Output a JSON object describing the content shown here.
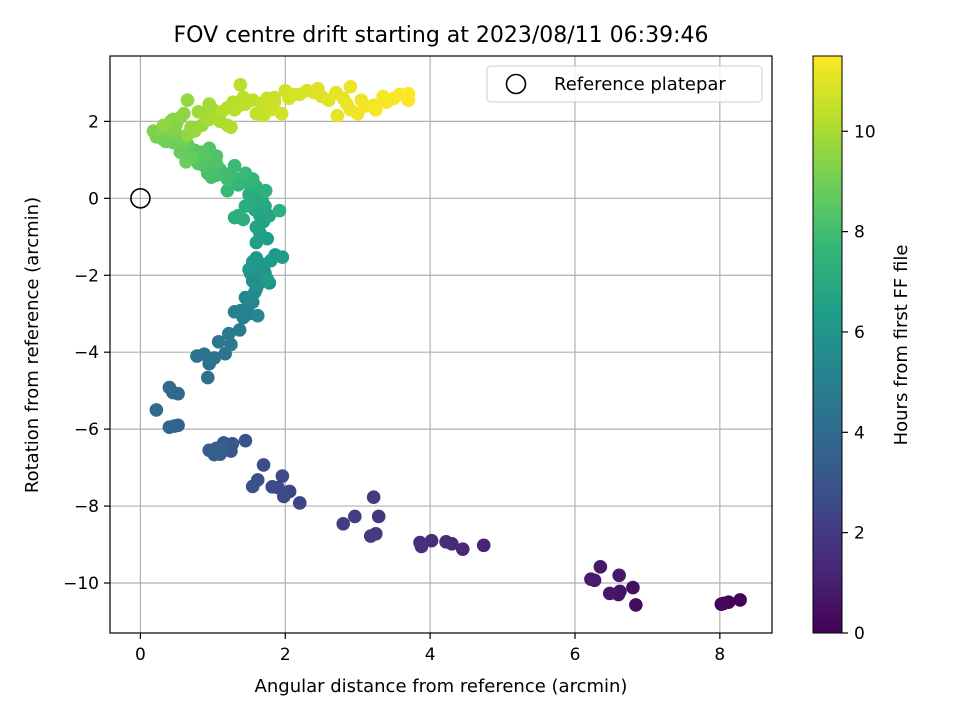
{
  "chart_data": {
    "type": "scatter",
    "title": "FOV centre drift starting at 2023/08/11 06:39:46",
    "xlabel": "Angular distance from reference (arcmin)",
    "ylabel": "Rotation from reference (arcmin)",
    "xlim": [
      -0.42,
      8.72
    ],
    "ylim": [
      -11.3,
      3.7
    ],
    "xticks": [
      0,
      2,
      4,
      6,
      8
    ],
    "xtick_labels": [
      "0",
      "2",
      "4",
      "6",
      "8"
    ],
    "yticks": [
      2,
      0,
      -2,
      -4,
      -6,
      -8,
      -10
    ],
    "ytick_labels": [
      "2",
      "0",
      "−2",
      "−4",
      "−6",
      "−8",
      "−10"
    ],
    "grid": true,
    "legend": {
      "position": "top-right",
      "entries": [
        {
          "label": "Reference platepar",
          "marker": "open-circle"
        }
      ]
    },
    "reference_point": {
      "x": 0,
      "y": 0
    },
    "colorbar": {
      "label": "Hours from first FF file",
      "range": [
        0,
        11.5
      ],
      "ticks": [
        0,
        2,
        4,
        6,
        8,
        10
      ],
      "tick_labels": [
        "0",
        "2",
        "4",
        "6",
        "8",
        "10"
      ],
      "colormap": "viridis"
    },
    "colors": {
      "viridis": [
        "#440154",
        "#482878",
        "#3e4a89",
        "#31688e",
        "#26828e",
        "#1f9e89",
        "#35b779",
        "#6ece58",
        "#b5de2b",
        "#fde725"
      ],
      "grid": "#b0b0b0"
    },
    "points": [
      [
        8.28,
        -10.44,
        0.05
      ],
      [
        8.12,
        -10.5,
        0.1
      ],
      [
        8.02,
        -10.55,
        0.15
      ],
      [
        8.05,
        -10.53,
        0.2
      ],
      [
        6.84,
        -10.57,
        0.4
      ],
      [
        6.8,
        -10.12,
        0.5
      ],
      [
        6.62,
        -10.22,
        0.6
      ],
      [
        6.6,
        -10.3,
        0.65
      ],
      [
        6.48,
        -10.27,
        0.7
      ],
      [
        6.61,
        -9.8,
        0.75
      ],
      [
        6.35,
        -9.58,
        0.8
      ],
      [
        6.27,
        -9.93,
        0.85
      ],
      [
        6.22,
        -9.9,
        0.9
      ],
      [
        4.74,
        -9.02,
        1.2
      ],
      [
        4.45,
        -9.12,
        1.3
      ],
      [
        4.3,
        -8.98,
        1.4
      ],
      [
        4.22,
        -8.93,
        1.45
      ],
      [
        4.02,
        -8.9,
        1.5
      ],
      [
        3.86,
        -8.95,
        1.55
      ],
      [
        3.88,
        -9.05,
        1.6
      ],
      [
        3.29,
        -8.27,
        1.8
      ],
      [
        3.25,
        -8.72,
        1.9
      ],
      [
        3.18,
        -8.78,
        1.95
      ],
      [
        3.22,
        -7.77,
        2.0
      ],
      [
        2.96,
        -8.27,
        2.1
      ],
      [
        2.8,
        -8.46,
        2.15
      ],
      [
        2.2,
        -7.92,
        2.3
      ],
      [
        2.06,
        -7.62,
        2.4
      ],
      [
        1.98,
        -7.75,
        2.5
      ],
      [
        1.96,
        -7.22,
        2.55
      ],
      [
        1.9,
        -7.52,
        2.6
      ],
      [
        1.82,
        -7.5,
        2.65
      ],
      [
        1.7,
        -6.93,
        2.7
      ],
      [
        1.62,
        -7.32,
        2.8
      ],
      [
        1.55,
        -7.49,
        2.85
      ],
      [
        1.45,
        -6.3,
        3.0
      ],
      [
        1.27,
        -6.38,
        3.1
      ],
      [
        1.25,
        -6.57,
        3.15
      ],
      [
        1.15,
        -6.36,
        3.2
      ],
      [
        1.1,
        -6.65,
        3.25
      ],
      [
        1.05,
        -6.5,
        3.3
      ],
      [
        0.95,
        -6.55,
        3.35
      ],
      [
        1.02,
        -6.66,
        3.4
      ],
      [
        1.12,
        -6.5,
        3.45
      ],
      [
        0.52,
        -5.9,
        3.6
      ],
      [
        0.47,
        -5.92,
        3.65
      ],
      [
        0.4,
        -5.95,
        3.7
      ],
      [
        0.52,
        -5.08,
        3.8
      ],
      [
        0.45,
        -5.05,
        3.85
      ],
      [
        0.4,
        -4.92,
        3.9
      ],
      [
        0.22,
        -5.5,
        4.0
      ],
      [
        0.93,
        -4.66,
        4.2
      ],
      [
        0.95,
        -4.3,
        4.3
      ],
      [
        0.88,
        -4.05,
        4.35
      ],
      [
        0.78,
        -4.1,
        4.4
      ],
      [
        1.02,
        -4.15,
        4.45
      ],
      [
        1.17,
        -4.04,
        4.5
      ],
      [
        1.08,
        -3.73,
        4.6
      ],
      [
        1.25,
        -3.8,
        4.65
      ],
      [
        1.22,
        -3.52,
        4.7
      ],
      [
        1.37,
        -3.42,
        4.8
      ],
      [
        1.42,
        -3.1,
        4.9
      ],
      [
        1.38,
        -2.92,
        4.95
      ],
      [
        1.3,
        -2.95,
        5.0
      ],
      [
        1.47,
        -2.85,
        5.05
      ],
      [
        1.5,
        -3.0,
        5.1
      ],
      [
        1.55,
        -2.7,
        5.2
      ],
      [
        1.45,
        -2.58,
        5.25
      ],
      [
        1.52,
        -2.62,
        5.3
      ],
      [
        1.62,
        -3.05,
        5.35
      ],
      [
        1.58,
        -2.44,
        5.4
      ],
      [
        1.6,
        -2.35,
        5.5
      ],
      [
        1.55,
        -2.15,
        5.6
      ],
      [
        1.52,
        -1.95,
        5.65
      ],
      [
        1.64,
        -2.0,
        5.7
      ],
      [
        1.7,
        -1.82,
        5.75
      ],
      [
        1.62,
        -2.25,
        5.8
      ],
      [
        1.72,
        -1.95,
        5.9
      ],
      [
        1.78,
        -2.2,
        5.95
      ],
      [
        1.66,
        -1.7,
        6.0
      ],
      [
        1.6,
        -1.55,
        6.05
      ],
      [
        1.55,
        -1.65,
        6.1
      ],
      [
        1.5,
        -1.85,
        6.15
      ],
      [
        1.86,
        -1.47,
        6.2
      ],
      [
        1.96,
        -1.53,
        6.25
      ],
      [
        1.8,
        -1.62,
        6.3
      ],
      [
        1.75,
        -2.1,
        6.35
      ],
      [
        1.6,
        -1.15,
        6.4
      ],
      [
        1.75,
        -1.05,
        6.45
      ],
      [
        1.65,
        -0.9,
        6.5
      ],
      [
        1.6,
        -0.75,
        6.6
      ],
      [
        1.7,
        -0.6,
        6.65
      ],
      [
        1.65,
        -0.45,
        6.7
      ],
      [
        1.78,
        -0.45,
        6.75
      ],
      [
        1.58,
        -0.3,
        6.8
      ],
      [
        1.72,
        -0.2,
        6.85
      ],
      [
        1.55,
        -0.1,
        6.9
      ],
      [
        1.68,
        -0.05,
        6.95
      ],
      [
        1.62,
        0.05,
        7.0
      ],
      [
        1.5,
        0.1,
        7.05
      ],
      [
        1.45,
        -0.2,
        7.1
      ],
      [
        1.35,
        -0.45,
        7.15
      ],
      [
        1.3,
        -0.5,
        7.2
      ],
      [
        1.42,
        -0.55,
        7.25
      ],
      [
        1.92,
        -0.32,
        7.3
      ],
      [
        1.73,
        0.2,
        7.35
      ],
      [
        1.6,
        0.3,
        7.4
      ],
      [
        1.48,
        0.4,
        7.45
      ],
      [
        1.55,
        0.5,
        7.5
      ],
      [
        1.42,
        0.55,
        7.55
      ],
      [
        1.35,
        0.35,
        7.6
      ],
      [
        1.28,
        0.55,
        7.65
      ],
      [
        1.2,
        0.2,
        7.7
      ],
      [
        1.45,
        0.65,
        7.75
      ],
      [
        1.3,
        0.85,
        7.8
      ],
      [
        1.25,
        0.65,
        7.9
      ],
      [
        1.2,
        0.5,
        7.95
      ],
      [
        1.1,
        0.75,
        8.0
      ],
      [
        1.05,
        0.6,
        8.05
      ],
      [
        0.98,
        0.55,
        8.1
      ],
      [
        0.93,
        0.65,
        8.15
      ],
      [
        0.88,
        0.85,
        8.2
      ],
      [
        1.05,
        0.9,
        8.25
      ],
      [
        1.05,
        1.1,
        8.3
      ],
      [
        0.95,
        1.3,
        8.35
      ],
      [
        0.9,
        1.0,
        8.4
      ],
      [
        0.8,
        0.9,
        8.45
      ],
      [
        0.85,
        1.2,
        8.5
      ],
      [
        0.75,
        1.25,
        8.55
      ],
      [
        0.65,
        1.1,
        8.6
      ],
      [
        0.58,
        1.3,
        8.65
      ],
      [
        0.65,
        1.4,
        8.7
      ],
      [
        0.7,
        1.05,
        8.75
      ],
      [
        0.55,
        1.2,
        8.8
      ],
      [
        0.63,
        0.95,
        8.85
      ],
      [
        0.45,
        1.45,
        8.9
      ],
      [
        0.35,
        1.48,
        8.95
      ],
      [
        0.3,
        1.55,
        9.0
      ],
      [
        0.4,
        1.65,
        9.05
      ],
      [
        0.25,
        1.7,
        9.1
      ],
      [
        0.22,
        1.6,
        9.15
      ],
      [
        0.18,
        1.75,
        9.2
      ],
      [
        0.3,
        1.8,
        9.25
      ],
      [
        0.4,
        1.9,
        9.3
      ],
      [
        0.5,
        1.95,
        9.35
      ],
      [
        0.45,
        2.05,
        9.4
      ],
      [
        0.55,
        2.1,
        9.45
      ],
      [
        0.6,
        2.2,
        9.5
      ],
      [
        0.32,
        1.9,
        9.55
      ],
      [
        0.65,
        1.65,
        9.6
      ],
      [
        0.7,
        1.85,
        9.65
      ],
      [
        0.75,
        1.75,
        9.7
      ],
      [
        0.85,
        1.9,
        9.75
      ],
      [
        0.9,
        2.2,
        9.8
      ],
      [
        0.8,
        2.25,
        9.85
      ],
      [
        1.0,
        2.3,
        9.9
      ],
      [
        0.95,
        2.05,
        9.95
      ],
      [
        1.05,
        2.15,
        10.0
      ],
      [
        1.1,
        2.0,
        10.05
      ],
      [
        1.2,
        1.9,
        10.1
      ],
      [
        1.25,
        1.85,
        10.15
      ],
      [
        1.12,
        2.25,
        10.2
      ],
      [
        1.2,
        2.35,
        10.25
      ],
      [
        1.35,
        2.4,
        10.3
      ],
      [
        1.45,
        2.45,
        10.35
      ],
      [
        1.55,
        2.55,
        10.4
      ],
      [
        1.6,
        2.2,
        10.45
      ],
      [
        1.7,
        2.15,
        10.5
      ],
      [
        1.75,
        2.6,
        10.55
      ],
      [
        1.85,
        2.5,
        10.6
      ],
      [
        1.8,
        2.3,
        10.65
      ],
      [
        1.95,
        2.2,
        10.7
      ],
      [
        2.05,
        2.6,
        10.75
      ],
      [
        2.2,
        2.7,
        10.8
      ],
      [
        2.3,
        2.8,
        10.85
      ],
      [
        2.4,
        2.75,
        10.9
      ],
      [
        2.5,
        2.65,
        10.95
      ],
      [
        2.6,
        2.55,
        11.0
      ],
      [
        2.7,
        2.75,
        11.05
      ],
      [
        2.8,
        2.6,
        11.1
      ],
      [
        2.85,
        2.45,
        11.15
      ],
      [
        2.9,
        2.3,
        11.2
      ],
      [
        3.0,
        2.2,
        11.25
      ],
      [
        3.1,
        2.4,
        11.3
      ],
      [
        3.25,
        2.3,
        11.35
      ],
      [
        3.4,
        2.5,
        11.4
      ],
      [
        3.5,
        2.6,
        11.42
      ],
      [
        3.58,
        2.7,
        11.44
      ],
      [
        3.7,
        2.55,
        11.46
      ],
      [
        0.42,
        2.0,
        9.25
      ],
      [
        0.48,
        1.75,
        9.3
      ],
      [
        0.6,
        1.5,
        9.0
      ],
      [
        0.65,
        2.55,
        9.6
      ],
      [
        0.95,
        2.45,
        9.9
      ],
      [
        1.28,
        2.5,
        10.2
      ],
      [
        1.42,
        2.62,
        10.3
      ],
      [
        1.3,
        2.3,
        10.25
      ],
      [
        1.68,
        2.48,
        10.5
      ],
      [
        1.85,
        2.62,
        10.6
      ],
      [
        2.0,
        2.8,
        10.7
      ],
      [
        2.12,
        2.7,
        10.78
      ],
      [
        2.45,
        2.85,
        10.92
      ],
      [
        2.9,
        2.9,
        11.2
      ],
      [
        3.05,
        2.55,
        11.25
      ],
      [
        3.35,
        2.65,
        11.38
      ],
      [
        3.7,
        2.72,
        11.46
      ],
      [
        1.38,
        2.95,
        10.3
      ],
      [
        2.72,
        2.15,
        11.05
      ],
      [
        3.22,
        2.42,
        11.32
      ]
    ]
  }
}
